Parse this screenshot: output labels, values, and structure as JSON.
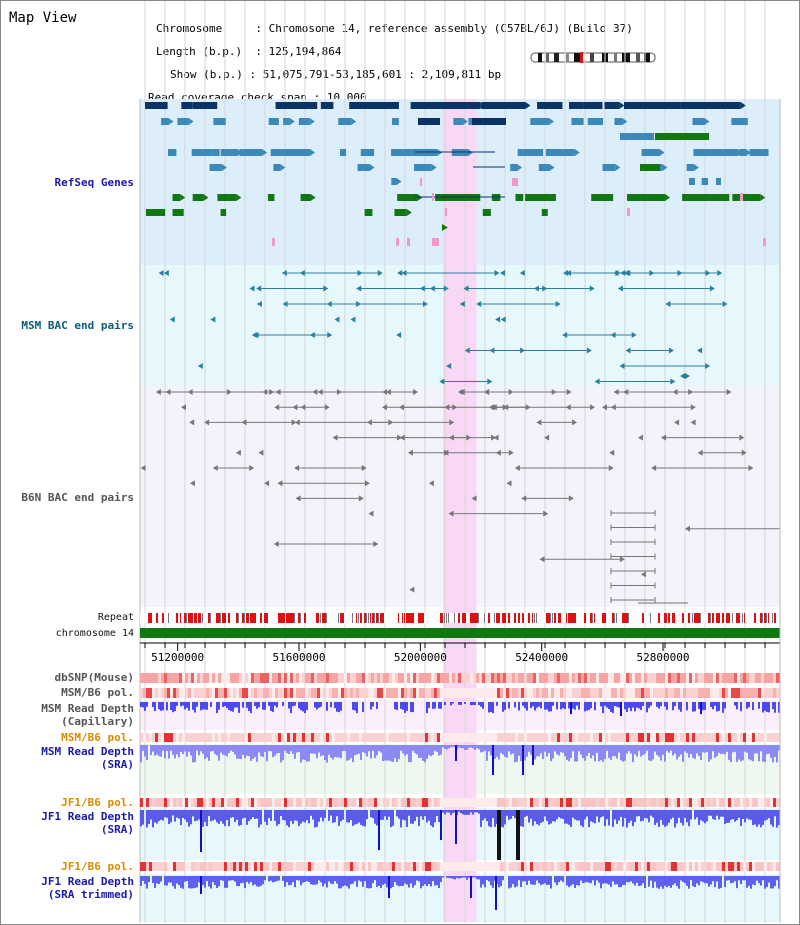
{
  "title": "Map View",
  "info": {
    "chromosome_label": "Chromosome",
    "chromosome_value": "Chromosome 14, reference assembly (C57BL/6J) (Build 37)",
    "length_label": "Length (b.p.)",
    "length_value": "125,194,864",
    "show_label": "Show (b.p.)",
    "show_value": "51,075,791-53,185,601 : 2,109,811 bp",
    "coverage_label": "Read coverage check span",
    "coverage_value": "10,000"
  },
  "axis": {
    "start": 51075791,
    "end": 53185601,
    "ticks": [
      "51200000",
      "51600000",
      "52000000",
      "52400000",
      "52800000"
    ],
    "tick_values": [
      51200000,
      51600000,
      52000000,
      52400000,
      52800000
    ]
  },
  "highlight_region": [
    52075000,
    52185000
  ],
  "tracks": {
    "refseq": "RefSeq Genes",
    "msm_bac": "MSM BAC end pairs",
    "b6n_bac": "B6N BAC end pairs",
    "repeat": "Repeat",
    "chromosome": "chromosome 14",
    "dbsnp": "dbSNP(Mouse)",
    "msm_b6_pol_1": "MSM/B6 pol.",
    "msm_depth_cap": "MSM Read Depth\n(Capillary)",
    "msm_b6_pol_2": "MSM/B6 pol.",
    "msm_depth_sra": "MSM Read Depth\n(SRA)",
    "jf1_b6_pol_1": "JF1/B6 pol.",
    "jf1_depth_sra": "JF1 Read Depth\n(SRA)",
    "jf1_b6_pol_2": "JF1/B6 pol.",
    "jf1_depth_trim": "JF1 Read Depth\n(SRA trimmed)"
  },
  "colors": {
    "refseq_bg": "#dbeefa",
    "msm_bg": "#e6f8fb",
    "b6n_bg": "#f3f3fb",
    "highlight": "#f8d8f4",
    "gene_dark": "#0b3366",
    "gene_mid": "#3a89b8",
    "gene_green": "#117711",
    "gene_pink": "#f299c8",
    "msm_bac": "#2a7fa0",
    "b6n_bac": "#777777",
    "repeat_red": "#dd1111",
    "chromosome_green": "#117711",
    "depth_blue": "#3a3ae8"
  }
}
